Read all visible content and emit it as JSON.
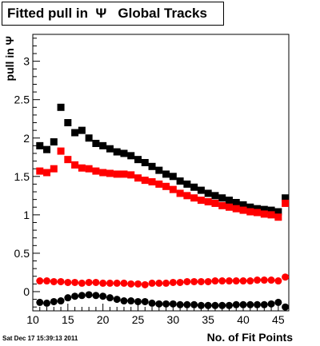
{
  "chart_data": {
    "type": "scatter",
    "title": "Fitted pull in  Ψ   Global Tracks",
    "xlabel": "No. of Fit Points",
    "ylabel": "pull in Ψ",
    "xlim": [
      10,
      46.5
    ],
    "ylim": [
      -0.25,
      3.35
    ],
    "x_ticks": [
      10,
      15,
      20,
      25,
      30,
      35,
      40,
      45
    ],
    "y_ticks": [
      0,
      0.5,
      1,
      1.5,
      2,
      2.5,
      3
    ],
    "grid": false,
    "legend": "none",
    "series": [
      {
        "marker": "square",
        "color": "#000000",
        "x": [
          11,
          12,
          13,
          14,
          15,
          16,
          17,
          18,
          19,
          20,
          21,
          22,
          23,
          24,
          25,
          26,
          27,
          28,
          29,
          30,
          31,
          32,
          33,
          34,
          35,
          36,
          37,
          38,
          39,
          40,
          41,
          42,
          43,
          44,
          45,
          46
        ],
        "y": [
          1.9,
          1.85,
          1.95,
          2.4,
          2.2,
          2.07,
          2.1,
          2.0,
          1.93,
          1.9,
          1.86,
          1.82,
          1.8,
          1.77,
          1.72,
          1.68,
          1.63,
          1.58,
          1.53,
          1.5,
          1.44,
          1.4,
          1.36,
          1.32,
          1.28,
          1.25,
          1.22,
          1.19,
          1.16,
          1.13,
          1.1,
          1.08,
          1.07,
          1.06,
          1.04,
          1.22
        ]
      },
      {
        "marker": "square",
        "color": "#ff0000",
        "x": [
          11,
          12,
          13,
          14,
          15,
          16,
          17,
          18,
          19,
          20,
          21,
          22,
          23,
          24,
          25,
          26,
          27,
          28,
          29,
          30,
          31,
          32,
          33,
          34,
          35,
          36,
          37,
          38,
          39,
          40,
          41,
          42,
          43,
          44,
          45,
          46
        ],
        "y": [
          1.57,
          1.55,
          1.6,
          1.83,
          1.72,
          1.65,
          1.61,
          1.6,
          1.57,
          1.55,
          1.54,
          1.53,
          1.53,
          1.52,
          1.48,
          1.45,
          1.43,
          1.4,
          1.37,
          1.33,
          1.28,
          1.25,
          1.22,
          1.19,
          1.17,
          1.15,
          1.12,
          1.1,
          1.08,
          1.06,
          1.04,
          1.03,
          1.01,
          1.0,
          0.97,
          1.15
        ]
      },
      {
        "marker": "circle",
        "color": "#ff0000",
        "x": [
          11,
          12,
          13,
          14,
          15,
          16,
          17,
          18,
          19,
          20,
          21,
          22,
          23,
          24,
          25,
          26,
          27,
          28,
          29,
          30,
          31,
          32,
          33,
          34,
          35,
          36,
          37,
          38,
          39,
          40,
          41,
          42,
          43,
          44,
          45,
          46
        ],
        "y": [
          0.14,
          0.14,
          0.13,
          0.13,
          0.12,
          0.12,
          0.11,
          0.12,
          0.12,
          0.11,
          0.11,
          0.11,
          0.11,
          0.1,
          0.1,
          0.09,
          0.11,
          0.11,
          0.11,
          0.12,
          0.12,
          0.13,
          0.13,
          0.13,
          0.13,
          0.14,
          0.14,
          0.14,
          0.14,
          0.14,
          0.14,
          0.15,
          0.15,
          0.15,
          0.14,
          0.19
        ]
      },
      {
        "marker": "circle",
        "color": "#000000",
        "x": [
          11,
          12,
          13,
          14,
          15,
          16,
          17,
          18,
          19,
          20,
          21,
          22,
          23,
          24,
          25,
          26,
          27,
          28,
          29,
          30,
          31,
          32,
          33,
          34,
          35,
          36,
          37,
          38,
          39,
          40,
          41,
          42,
          43,
          44,
          45,
          46
        ],
        "y": [
          -0.14,
          -0.15,
          -0.13,
          -0.12,
          -0.08,
          -0.06,
          -0.05,
          -0.04,
          -0.05,
          -0.06,
          -0.08,
          -0.1,
          -0.12,
          -0.12,
          -0.13,
          -0.13,
          -0.15,
          -0.16,
          -0.16,
          -0.16,
          -0.17,
          -0.17,
          -0.17,
          -0.18,
          -0.18,
          -0.18,
          -0.18,
          -0.18,
          -0.17,
          -0.17,
          -0.17,
          -0.17,
          -0.17,
          -0.16,
          -0.14,
          -0.2
        ]
      }
    ]
  },
  "footer": {
    "date": "Sat Dec 17 15:39:13 2011"
  }
}
